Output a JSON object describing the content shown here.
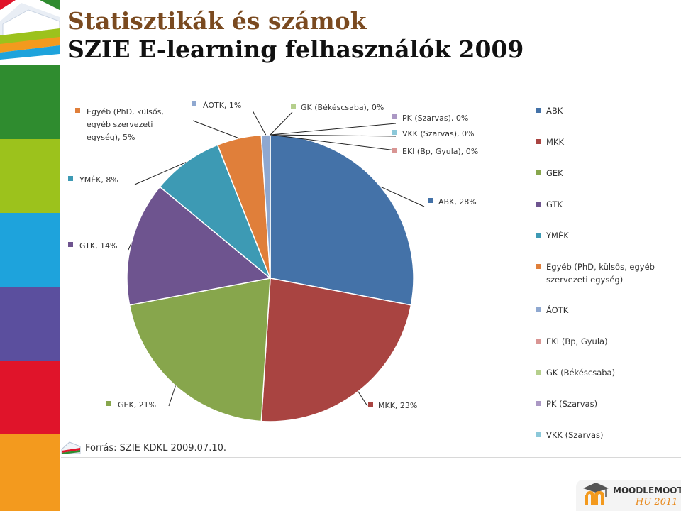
{
  "slide": {
    "title_line1": "Statisztikák és számok",
    "title_line2": "SZIE E-learning felhasználók 2009"
  },
  "sidebar_colors": [
    "#2f8c2f",
    "#9cc21c",
    "#1ea3dc",
    "#5b4f9e",
    "#e0142a",
    "#f39a1e"
  ],
  "source": {
    "text": "Forrás: SZIE KDKL 2009.07.10.",
    "icon": "book-icon"
  },
  "moodle_badge": {
    "brand": "MOODLEMOOT",
    "sub": "HU 2011",
    "icon": "moodle-graduation-cap-icon"
  },
  "chart_data": {
    "type": "pie",
    "slices": [
      {
        "name": "ABK",
        "value": 28,
        "label": "ABK, 28%",
        "color": "#4472a8"
      },
      {
        "name": "MKK",
        "value": 23,
        "label": "MKK, 23%",
        "color": "#a94441"
      },
      {
        "name": "GEK",
        "value": 21,
        "label": "GEK, 21%",
        "color": "#87a64c"
      },
      {
        "name": "GTK",
        "value": 14,
        "label": "GTK, 14%",
        "color": "#6e548f"
      },
      {
        "name": "YMÉK",
        "value": 8,
        "label": "YMÉK, 8%",
        "color": "#3d9ab4"
      },
      {
        "name": "Egyéb (PhD, külsős, egyéb szervezeti egység)",
        "value": 5,
        "label_lines": [
          "Egyéb (PhD, külsős,",
          "egyéb szervezeti",
          "egység), 5%"
        ],
        "color": "#e07f3a"
      },
      {
        "name": "ÁOTK",
        "value": 1,
        "label": "ÁOTK, 1%",
        "color": "#8fa8d0"
      },
      {
        "name": "GK (Békéscsaba)",
        "value": 0,
        "label": "GK (Békéscsaba), 0%",
        "color": "#b5cf8c"
      },
      {
        "name": "PK (Szarvas)",
        "value": 0,
        "label": "PK (Szarvas), 0%",
        "color": "#ab98c4"
      },
      {
        "name": "VKK (Szarvas)",
        "value": 0,
        "label": "VKK (Szarvas), 0%",
        "color": "#8cc8d9"
      },
      {
        "name": "EKI (Bp, Gyula)",
        "value": 0,
        "label": "EKI (Bp, Gyula), 0%",
        "color": "#d99593"
      }
    ],
    "legend": [
      {
        "lines": [
          "ABK"
        ],
        "color": "#4472a8"
      },
      {
        "lines": [
          "MKK"
        ],
        "color": "#a94441"
      },
      {
        "lines": [
          "GEK"
        ],
        "color": "#87a64c"
      },
      {
        "lines": [
          "GTK"
        ],
        "color": "#6e548f"
      },
      {
        "lines": [
          "YMÉK"
        ],
        "color": "#3d9ab4"
      },
      {
        "lines": [
          "Egyéb (PhD, külsős, egyéb",
          "szervezeti egység)"
        ],
        "color": "#e07f3a"
      },
      {
        "lines": [
          "ÁOTK"
        ],
        "color": "#8fa8d0"
      },
      {
        "lines": [
          "EKI (Bp, Gyula)"
        ],
        "color": "#d99593"
      },
      {
        "lines": [
          "GK (Békéscsaba)"
        ],
        "color": "#b5cf8c"
      },
      {
        "lines": [
          "PK (Szarvas)"
        ],
        "color": "#ab98c4"
      },
      {
        "lines": [
          "VKK (Szarvas)"
        ],
        "color": "#8cc8d9"
      }
    ],
    "legend_position": "right"
  }
}
